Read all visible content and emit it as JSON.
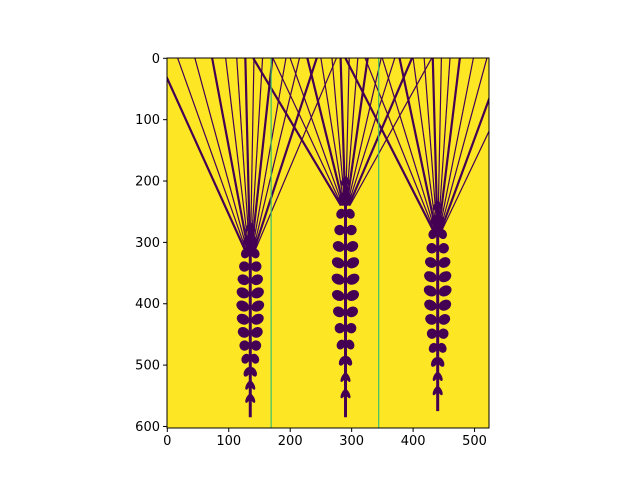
{
  "chart_data": {
    "type": "heatmap",
    "title": "",
    "xlabel": "",
    "ylabel": "",
    "image_width": 524,
    "image_height": 603,
    "xlim": [
      -0.5,
      523.5
    ],
    "ylim": [
      602.5,
      -0.5
    ],
    "y_inverted": true,
    "x_ticks": [
      0,
      100,
      200,
      300,
      400,
      500
    ],
    "y_ticks": [
      0,
      100,
      200,
      300,
      400,
      500,
      600
    ],
    "x_tick_labels": [
      "0",
      "100",
      "200",
      "300",
      "400",
      "500"
    ],
    "y_tick_labels": [
      "0",
      "100",
      "200",
      "300",
      "400",
      "500",
      "600"
    ],
    "grid": false,
    "legend": "none",
    "colormap": "viridis",
    "values_present": [
      0,
      1
    ],
    "colors": {
      "background_value_1": "#fde725",
      "foreground_value_0": "#440154",
      "edge_lines": "#3bc06a"
    },
    "vertical_lines_x": [
      169,
      344
    ],
    "wheat_heads": [
      {
        "name": "left",
        "center_x": 135,
        "bottom_y": 585,
        "spike_top_y": 275
      },
      {
        "name": "middle",
        "center_x": 290,
        "bottom_y": 585,
        "spike_top_y": 200
      },
      {
        "name": "right",
        "center_x": 440,
        "bottom_y": 575,
        "spike_top_y": 240
      }
    ]
  }
}
